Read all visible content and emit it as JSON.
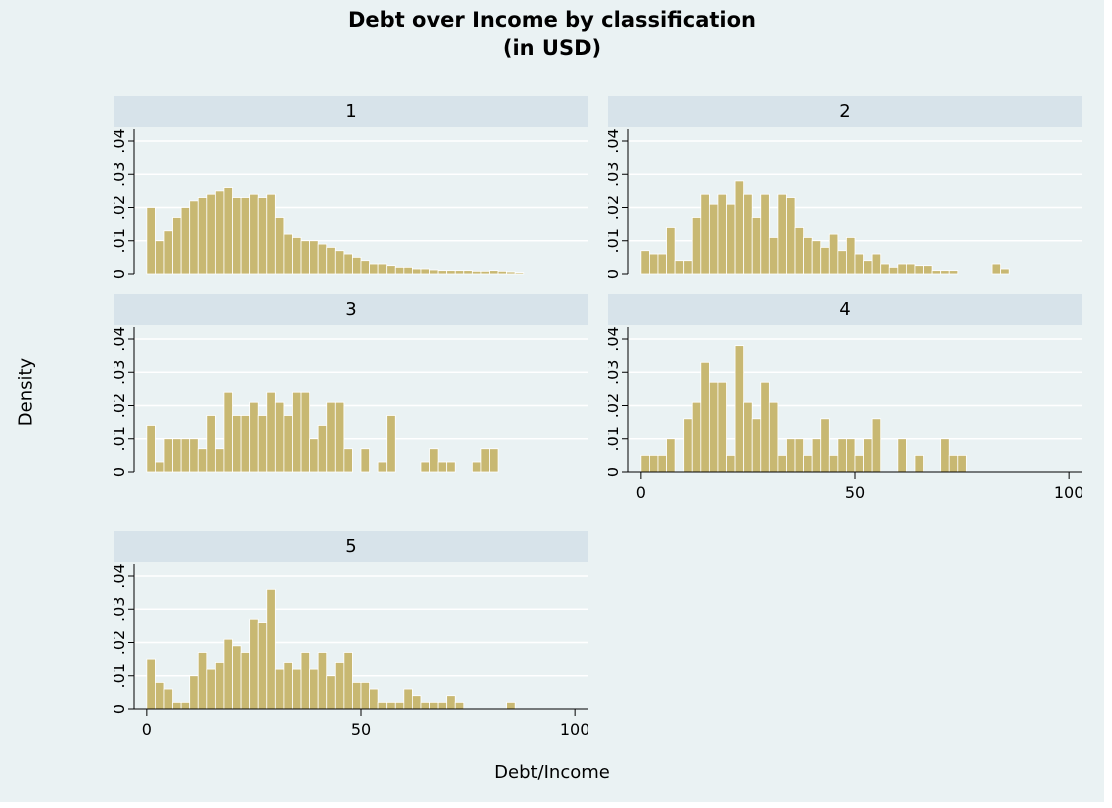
{
  "chart_data": {
    "type": "bar",
    "title": "Debt over Income by classification",
    "subtitle": "(in USD)",
    "xlabel": "Debt/Income",
    "ylabel": "Density",
    "xlim": [
      -3,
      103
    ],
    "ylim": [
      0,
      0.04
    ],
    "xticks": [
      "0",
      "50",
      "100"
    ],
    "yticks": [
      "0",
      ".01",
      ".02",
      ".03",
      ".04"
    ],
    "grid": true,
    "bar_color": "#c8b872",
    "bar_edge_color": "#ffffff",
    "strip_color": "#d7e3ea",
    "background_color": "#eaf2f3",
    "panels": [
      {
        "label": "1",
        "bin_width": 2,
        "values": [
          0.02,
          0.01,
          0.013,
          0.017,
          0.02,
          0.022,
          0.023,
          0.024,
          0.025,
          0.026,
          0.023,
          0.023,
          0.024,
          0.023,
          0.024,
          0.017,
          0.012,
          0.011,
          0.01,
          0.01,
          0.009,
          0.008,
          0.007,
          0.006,
          0.005,
          0.004,
          0.003,
          0.003,
          0.0025,
          0.002,
          0.002,
          0.0015,
          0.0015,
          0.0012,
          0.001,
          0.001,
          0.001,
          0.001,
          0.0008,
          0.0008,
          0.001,
          0.0008,
          0.0006,
          0.0004
        ]
      },
      {
        "label": "2",
        "bin_width": 2,
        "values": [
          0.007,
          0.006,
          0.006,
          0.014,
          0.004,
          0.004,
          0.017,
          0.024,
          0.021,
          0.024,
          0.021,
          0.028,
          0.024,
          0.017,
          0.024,
          0.011,
          0.024,
          0.023,
          0.014,
          0.011,
          0.01,
          0.008,
          0.012,
          0.007,
          0.011,
          0.006,
          0.004,
          0.006,
          0.003,
          0.002,
          0.003,
          0.003,
          0.0025,
          0.0025,
          0.001,
          0.001,
          0.001,
          0,
          0,
          0,
          0,
          0.003,
          0.0015
        ]
      },
      {
        "label": "3",
        "bin_width": 2,
        "values": [
          0.014,
          0.003,
          0.01,
          0.01,
          0.01,
          0.01,
          0.007,
          0.017,
          0.007,
          0.024,
          0.017,
          0.017,
          0.021,
          0.017,
          0.024,
          0.021,
          0.017,
          0.024,
          0.024,
          0.01,
          0.014,
          0.021,
          0.021,
          0.007,
          0,
          0.007,
          0,
          0.003,
          0.017,
          0,
          0,
          0,
          0.003,
          0.007,
          0.003,
          0.003,
          0,
          0,
          0.003,
          0.007,
          0.007
        ]
      },
      {
        "label": "4",
        "bin_width": 2,
        "values": [
          0.005,
          0.005,
          0.005,
          0.01,
          0,
          0.016,
          0.021,
          0.033,
          0.027,
          0.027,
          0.005,
          0.038,
          0.021,
          0.016,
          0.027,
          0.021,
          0.005,
          0.01,
          0.01,
          0.005,
          0.01,
          0.016,
          0.005,
          0.01,
          0.01,
          0.005,
          0.01,
          0.016,
          0,
          0,
          0.01,
          0,
          0.005,
          0,
          0,
          0.01,
          0.005,
          0.005
        ]
      },
      {
        "label": "5",
        "bin_width": 2,
        "values": [
          0.015,
          0.008,
          0.006,
          0.002,
          0.002,
          0.01,
          0.017,
          0.012,
          0.014,
          0.021,
          0.019,
          0.017,
          0.027,
          0.026,
          0.036,
          0.012,
          0.014,
          0.012,
          0.017,
          0.012,
          0.017,
          0.01,
          0.014,
          0.017,
          0.008,
          0.008,
          0.006,
          0.002,
          0.002,
          0.002,
          0.006,
          0.004,
          0.002,
          0.002,
          0.002,
          0.004,
          0.002,
          0,
          0,
          0,
          0,
          0,
          0.002
        ]
      }
    ]
  }
}
